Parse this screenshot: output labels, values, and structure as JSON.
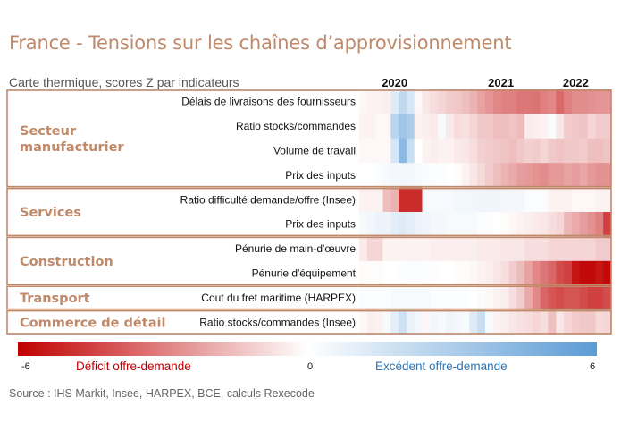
{
  "title": "France - Tensions sur les chaînes d’approvisionnement",
  "subtitle": "Carte thermique, scores Z par indicateurs",
  "source": "Source :  IHS Markit, Insee, HARPEX, BCE, calculs Rexecode",
  "chart_data": {
    "type": "heatmap",
    "x_years": [
      "2020",
      "2021",
      "2022"
    ],
    "value_range": [
      -6,
      6
    ],
    "legend": {
      "min_label": "-6",
      "mid_label": "0",
      "max_label": "6",
      "negative_label": "Déficit offre-demande",
      "positive_label": "Excédent offre-demande",
      "negative_color": "#c00000",
      "mid_color": "#ffffff",
      "positive_color": "#5b9bd5"
    },
    "groups": [
      {
        "name": "Secteur\nmanufacturier",
        "rows": [
          {
            "label": "Délais de livraisons des fournisseurs",
            "values": [
              -0.2,
              -0.3,
              -0.3,
              -0.4,
              1.2,
              2.3,
              1.5,
              -0.2,
              -0.6,
              -0.8,
              -1.0,
              -1.2,
              -1.3,
              -1.5,
              -1.8,
              -2.2,
              -2.5,
              -2.8,
              -3.0,
              -3.0,
              -3.2,
              -3.2,
              -3.3,
              -3.0,
              -2.8,
              -3.5,
              -3.0,
              -2.7,
              -2.7,
              -2.6,
              -2.5,
              -2.5
            ]
          },
          {
            "label": "Ratio stocks/commandes",
            "values": [
              -0.3,
              -0.3,
              -0.2,
              -0.2,
              2.5,
              3.5,
              3.0,
              -0.3,
              -0.4,
              -0.5,
              0.3,
              -0.5,
              -0.8,
              -0.7,
              -1.0,
              -1.3,
              -1.3,
              -1.5,
              -1.5,
              -1.4,
              -1.6,
              -0.5,
              -0.4,
              -0.3,
              0.2,
              -0.6,
              -1.2,
              -1.3,
              -1.4,
              -1.0,
              -1.2,
              -1.2
            ]
          },
          {
            "label": "Volume de travail",
            "values": [
              -0.2,
              -0.2,
              -0.2,
              -0.2,
              1.5,
              4.2,
              2.0,
              0.0,
              -0.3,
              -0.4,
              -0.3,
              -0.3,
              -0.5,
              -0.6,
              -0.8,
              -1.1,
              -1.2,
              -1.3,
              -1.4,
              -1.5,
              -1.3,
              -1.1,
              -1.2,
              -1.0,
              -1.3,
              -1.4,
              -1.3,
              -1.3,
              -1.2,
              -1.5,
              -1.5,
              -1.4
            ]
          },
          {
            "label": "Prix des inputs",
            "values": [
              0.0,
              0.0,
              0.2,
              0.3,
              0.4,
              0.5,
              0.4,
              0.3,
              0.2,
              0.1,
              0.1,
              0.0,
              -0.1,
              -0.3,
              -0.6,
              -0.9,
              -1.2,
              -1.5,
              -1.8,
              -2.0,
              -2.3,
              -2.4,
              -2.6,
              -2.7,
              -2.4,
              -2.4,
              -2.2,
              -2.3,
              -2.1,
              -2.4,
              -2.6,
              -2.6
            ]
          }
        ]
      },
      {
        "name": "Services",
        "rows": [
          {
            "label": "Ratio difficulté demande/offre (Insee)",
            "values": [
              -0.3,
              -0.3,
              -0.3,
              -1.5,
              -1.8,
              -5.0,
              -5.0,
              -5.0,
              0.3,
              0.3,
              0.3,
              0.3,
              0.5,
              0.5,
              0.5,
              0.6,
              0.6,
              0.6,
              0.4,
              0.4,
              0.4,
              0.2,
              0.2,
              0.2,
              -0.3,
              -0.3,
              -0.3,
              -0.2,
              -0.2,
              -0.2,
              -0.3,
              -0.3
            ]
          },
          {
            "label": "Prix des inputs",
            "values": [
              0.3,
              0.5,
              0.7,
              0.7,
              1.0,
              1.2,
              1.0,
              0.7,
              0.6,
              0.4,
              0.4,
              0.3,
              0.3,
              0.3,
              0.3,
              0.2,
              0.1,
              0.0,
              -0.1,
              -0.2,
              -0.3,
              -0.4,
              -0.5,
              -0.6,
              -0.8,
              -1.0,
              -1.7,
              -2.0,
              -2.3,
              -2.6,
              -3.0,
              -4.5
            ]
          }
        ]
      },
      {
        "name": "Construction",
        "rows": [
          {
            "label": "Pénurie de main-d'œuvre",
            "values": [
              -0.5,
              -1.0,
              -1.0,
              -0.3,
              -0.3,
              -0.3,
              -0.3,
              -0.3,
              -0.3,
              -0.4,
              -0.4,
              -0.4,
              -0.4,
              -0.4,
              -0.4,
              -0.5,
              -0.5,
              -0.5,
              -0.6,
              -0.6,
              -0.6,
              -0.8,
              -0.8,
              -0.8,
              -1.0,
              -1.0,
              -1.0,
              -1.0,
              -1.0,
              -1.0,
              -1.2,
              -1.2
            ]
          },
          {
            "label": "Pénurie d'équipement",
            "values": [
              -0.1,
              -0.1,
              -0.1,
              0.0,
              0.0,
              0.1,
              0.2,
              0.2,
              0.1,
              0.1,
              0.0,
              0.0,
              -0.1,
              -0.1,
              -0.2,
              -0.3,
              -0.4,
              -0.6,
              -0.8,
              -1.2,
              -1.6,
              -2.2,
              -2.8,
              -3.2,
              -3.6,
              -4.2,
              -4.5,
              -5.5,
              -5.8,
              -5.8,
              -5.5,
              -5.8
            ]
          }
        ]
      },
      {
        "name": "Transport",
        "rows": [
          {
            "label": "Cout du fret maritime (HARPEX)",
            "values": [
              0.2,
              0.2,
              0.2,
              0.2,
              0.3,
              0.3,
              0.3,
              0.3,
              0.3,
              0.2,
              0.2,
              0.2,
              0.1,
              0.1,
              0.0,
              -0.1,
              -0.2,
              -0.3,
              -0.4,
              -0.8,
              -1.2,
              -2.0,
              -2.8,
              -3.6,
              -4.0,
              -4.2,
              -4.0,
              -4.0,
              -4.2,
              -4.5,
              -4.5,
              -4.2
            ]
          }
        ]
      },
      {
        "name": "Commerce de détail",
        "rows": [
          {
            "label": "Ratio stocks/commandes (Insee)",
            "values": [
              -0.2,
              -0.4,
              -0.3,
              0.3,
              1.0,
              1.8,
              0.8,
              0.5,
              -0.2,
              0.5,
              0.3,
              0.6,
              0.4,
              0.3,
              1.2,
              2.0,
              0.3,
              -0.3,
              -0.4,
              -0.6,
              -0.7,
              -0.8,
              -1.0,
              -0.8,
              -1.5,
              -0.6,
              -1.0,
              -1.2,
              -1.3,
              -1.3,
              -0.9,
              -1.0
            ]
          }
        ]
      }
    ]
  }
}
